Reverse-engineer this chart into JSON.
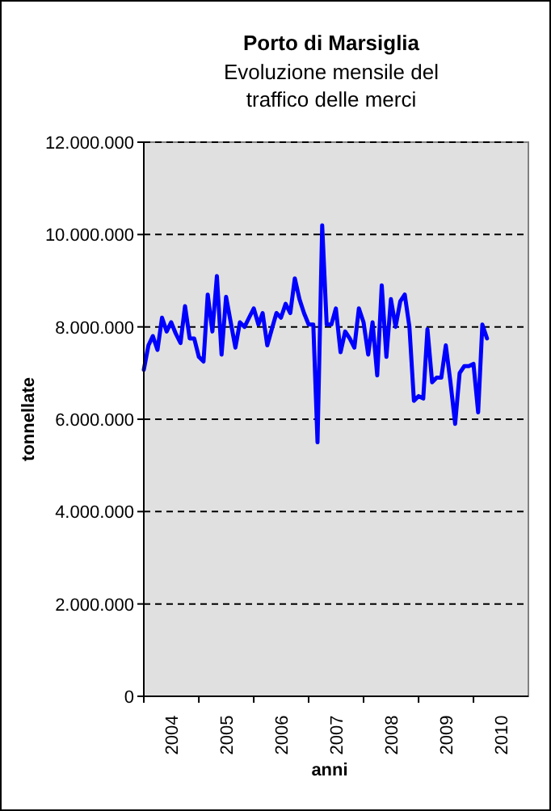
{
  "chart_data": {
    "type": "line",
    "title": "Porto di Marsiglia",
    "subtitle": "Evoluzione mensile del\ntraffico delle merci",
    "xlabel": "anni",
    "ylabel": "tonnellate",
    "x": [
      "2004-01",
      "2004-02",
      "2004-03",
      "2004-04",
      "2004-05",
      "2004-06",
      "2004-07",
      "2004-08",
      "2004-09",
      "2004-10",
      "2004-11",
      "2004-12",
      "2005-01",
      "2005-02",
      "2005-03",
      "2005-04",
      "2005-05",
      "2005-06",
      "2005-07",
      "2005-08",
      "2005-09",
      "2005-10",
      "2005-11",
      "2005-12",
      "2006-01",
      "2006-02",
      "2006-03",
      "2006-04",
      "2006-05",
      "2006-06",
      "2006-07",
      "2006-08",
      "2006-09",
      "2006-10",
      "2006-11",
      "2006-12",
      "2007-01",
      "2007-02",
      "2007-03",
      "2007-04",
      "2007-05",
      "2007-06",
      "2007-07",
      "2007-08",
      "2007-09",
      "2007-10",
      "2007-11",
      "2007-12",
      "2008-01",
      "2008-02",
      "2008-03",
      "2008-04",
      "2008-05",
      "2008-06",
      "2008-07",
      "2008-08",
      "2008-09",
      "2008-10",
      "2008-11",
      "2008-12",
      "2009-01",
      "2009-02",
      "2009-03",
      "2009-04",
      "2009-05",
      "2009-06",
      "2009-07",
      "2009-08",
      "2009-09",
      "2009-10",
      "2009-11",
      "2009-12",
      "2010-01",
      "2010-02",
      "2010-03",
      "2010-04"
    ],
    "series": [
      {
        "color": "#0000ff",
        "values": [
          7070000,
          7600000,
          7800000,
          7500000,
          8200000,
          7900000,
          8100000,
          7850000,
          7650000,
          8450000,
          7750000,
          7750000,
          7350000,
          7250000,
          8700000,
          7900000,
          9100000,
          7400000,
          8650000,
          8100000,
          7550000,
          8100000,
          8000000,
          8200000,
          8400000,
          8050000,
          8300000,
          7600000,
          7950000,
          8300000,
          8200000,
          8500000,
          8300000,
          9050000,
          8600000,
          8300000,
          8050000,
          8050000,
          5500000,
          10200000,
          8050000,
          8050000,
          8400000,
          7450000,
          7900000,
          7750000,
          7550000,
          8400000,
          8100000,
          7400000,
          8100000,
          6950000,
          8900000,
          7350000,
          8600000,
          8000000,
          8550000,
          8700000,
          8000000,
          6400000,
          6500000,
          6450000,
          7950000,
          6800000,
          6900000,
          6900000,
          7600000,
          6800000,
          5900000,
          7000000,
          7150000,
          7150000,
          7200000,
          6150000,
          8050000,
          7750000
        ]
      }
    ],
    "xlim": [
      "2004-01",
      "2011-01"
    ],
    "xticks": [
      {
        "value": "2004-01",
        "label": null
      },
      {
        "value": "2004-07",
        "label": "2004"
      },
      {
        "value": "2005-01",
        "label": null
      },
      {
        "value": "2005-07",
        "label": "2005"
      },
      {
        "value": "2006-01",
        "label": null
      },
      {
        "value": "2006-07",
        "label": "2006"
      },
      {
        "value": "2007-01",
        "label": null
      },
      {
        "value": "2007-07",
        "label": "2007"
      },
      {
        "value": "2008-01",
        "label": null
      },
      {
        "value": "2008-07",
        "label": "2008"
      },
      {
        "value": "2009-01",
        "label": null
      },
      {
        "value": "2009-07",
        "label": "2009"
      },
      {
        "value": "2010-01",
        "label": null
      },
      {
        "value": "2010-07",
        "label": "2010"
      }
    ],
    "ylim": [
      0,
      12000000
    ],
    "yticks": [
      0,
      {
        "value": 2000000,
        "label": "2.000.000"
      },
      {
        "value": 4000000,
        "label": "4.000.000"
      },
      {
        "value": 6000000,
        "label": "6.000.000"
      },
      {
        "value": 8000000,
        "label": "8.000.000"
      },
      {
        "value": 10000000,
        "label": "10.000.000"
      },
      {
        "value": 12000000,
        "label": "12.000.000"
      }
    ],
    "grid": "y",
    "line_style": "solid",
    "marker": "none"
  }
}
